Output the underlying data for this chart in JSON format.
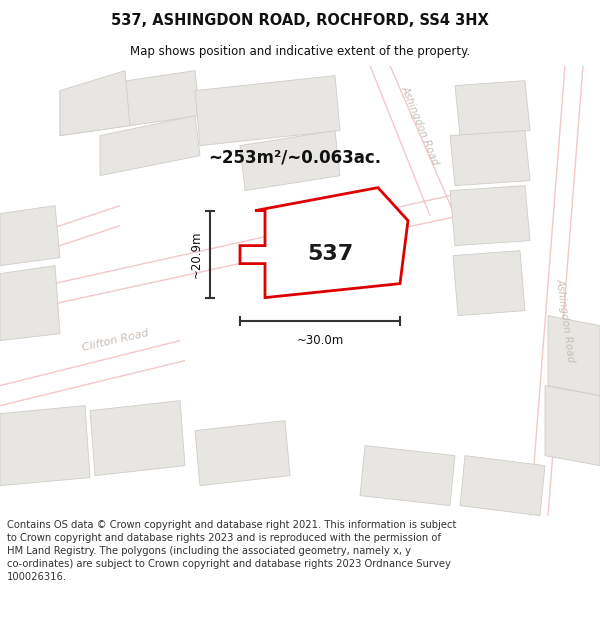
{
  "title": "537, ASHINGDON ROAD, ROCHFORD, SS4 3HX",
  "subtitle": "Map shows position and indicative extent of the property.",
  "area_label": "~253m²/~0.063ac.",
  "plot_number": "537",
  "dim_width": "~30.0m",
  "dim_height": "~20.9m",
  "footer": "Contains OS data © Crown copyright and database right 2021. This information is subject to Crown copyright and database rights 2023 and is reproduced with the permission of HM Land Registry. The polygons (including the associated geometry, namely x, y co-ordinates) are subject to Crown copyright and database rights 2023 Ordnance Survey 100026316.",
  "map_bg": "#f7f6f4",
  "building_fill": "#e8e6e3",
  "building_edge": "#d0cdc8",
  "road_line_color": "#f2c8c8",
  "plot_edge_color": "#dd0000",
  "road_label_color": "#c8bfb8",
  "title_fontsize": 10.5,
  "subtitle_fontsize": 8.5,
  "footer_fontsize": 7.2
}
